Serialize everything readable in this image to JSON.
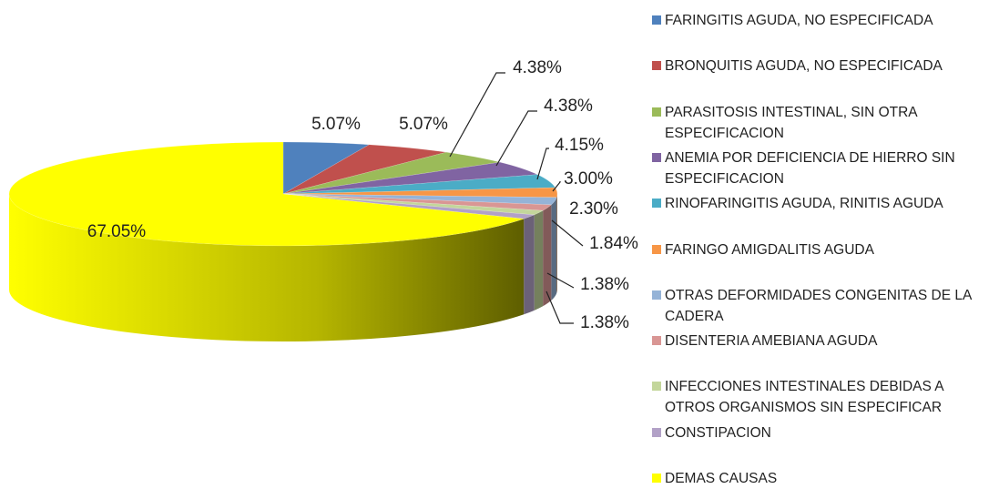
{
  "chart_data": {
    "type": "pie",
    "categories": [
      "FARINGITIS AGUDA, NO ESPECIFICADA",
      "BRONQUITIS AGUDA, NO ESPECIFICADA",
      "PARASITOSIS INTESTINAL, SIN OTRA ESPECIFICACION",
      "ANEMIA POR DEFICIENCIA DE HIERRO SIN ESPECIFICACION",
      "RINOFARINGITIS AGUDA, RINITIS AGUDA",
      "FARINGO AMIGDALITIS AGUDA",
      "OTRAS DEFORMIDADES CONGENITAS DE LA CADERA",
      "DISENTERIA AMEBIANA AGUDA",
      "INFECCIONES INTESTINALES DEBIDAS A OTROS ORGANISMOS SIN ESPECIFICAR",
      "CONSTIPACION",
      "DEMAS CAUSAS"
    ],
    "values": [
      5.07,
      5.07,
      4.38,
      4.38,
      4.15,
      3.0,
      2.3,
      1.84,
      1.38,
      1.38,
      67.05
    ],
    "value_labels": [
      "5.07%",
      "5.07%",
      "4.38%",
      "4.38%",
      "4.15%",
      "3.00%",
      "2.30%",
      "1.84%",
      "1.38%",
      "1.38%",
      "67.05%"
    ],
    "colors": [
      "#4f81bd",
      "#c0504d",
      "#9bbb59",
      "#8064a2",
      "#4bacc6",
      "#f79646",
      "#95b3d7",
      "#d99694",
      "#c3d69b",
      "#b2a1c7",
      "#ffff00"
    ],
    "legend": "right"
  }
}
